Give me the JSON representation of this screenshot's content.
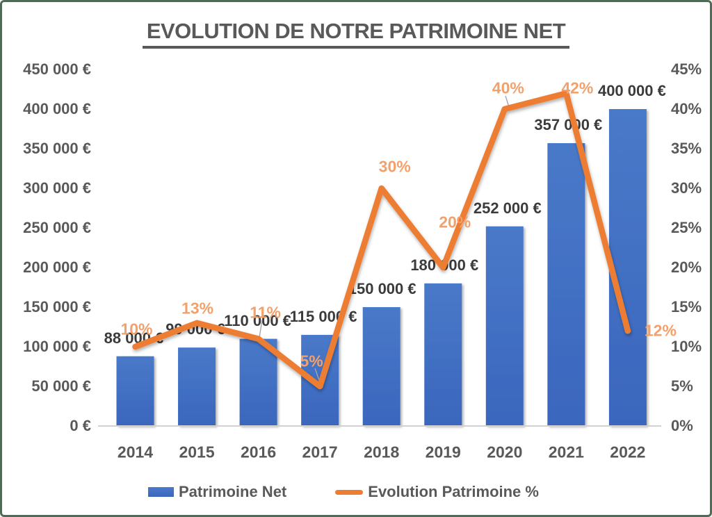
{
  "title": "EVOLUTION DE NOTRE PATRIMOINE NET",
  "colors": {
    "bar_top": "#4A79C9",
    "bar_bottom": "#3A66BD",
    "line": "#ED7D31",
    "pct_label": "#F2A16C",
    "value_label": "#3B3B3B",
    "axis_text": "#595959",
    "axis_line": "#D2D0D0",
    "leader_line": "#A6A6A6",
    "card_border": "#4E6B58"
  },
  "legend": {
    "items": [
      {
        "label": "Patrimoine Net",
        "swatch": "bar"
      },
      {
        "label": "Evolution Patrimoine %",
        "swatch": "line"
      }
    ]
  },
  "chart_data": {
    "type": "combo",
    "title": "EVOLUTION DE NOTRE PATRIMOINE NET",
    "categories": [
      "2014",
      "2015",
      "2016",
      "2017",
      "2018",
      "2019",
      "2020",
      "2021",
      "2022"
    ],
    "series": [
      {
        "name": "Patrimoine Net",
        "chart": "bar",
        "axis": "left",
        "values": [
          88000,
          99000,
          110000,
          115000,
          150000,
          180000,
          252000,
          357000,
          400000
        ],
        "data_labels": [
          "88 000 €",
          "99 000 €",
          "110 000 €",
          "115 000 €",
          "150 000 €",
          "180 000 €",
          "252 000 €",
          "357 000 €",
          "400 000 €"
        ]
      },
      {
        "name": "Evolution Patrimoine %",
        "chart": "line",
        "axis": "right",
        "values": [
          10,
          13,
          11,
          5,
          30,
          20,
          40,
          42,
          12
        ],
        "data_labels": [
          "10%",
          "13%",
          "11%",
          "5%",
          "30%",
          "20%",
          "40%",
          "42%",
          "12%"
        ]
      }
    ],
    "axes": {
      "left": {
        "min": 0,
        "max": 450000,
        "step": 50000,
        "tick_labels": [
          "450 000 €",
          "400 000 €",
          "350 000 €",
          "300 000 €",
          "250 000 €",
          "200 000 €",
          "150 000 €",
          "100 000 €",
          "50 000 €",
          "0 €"
        ]
      },
      "right": {
        "min": 0,
        "max": 45,
        "step": 5,
        "tick_labels": [
          "45%",
          "40%",
          "35%",
          "30%",
          "25%",
          "20%",
          "15%",
          "10%",
          "5%",
          "0%"
        ]
      }
    },
    "grid": false,
    "legend_position": "bottom"
  }
}
